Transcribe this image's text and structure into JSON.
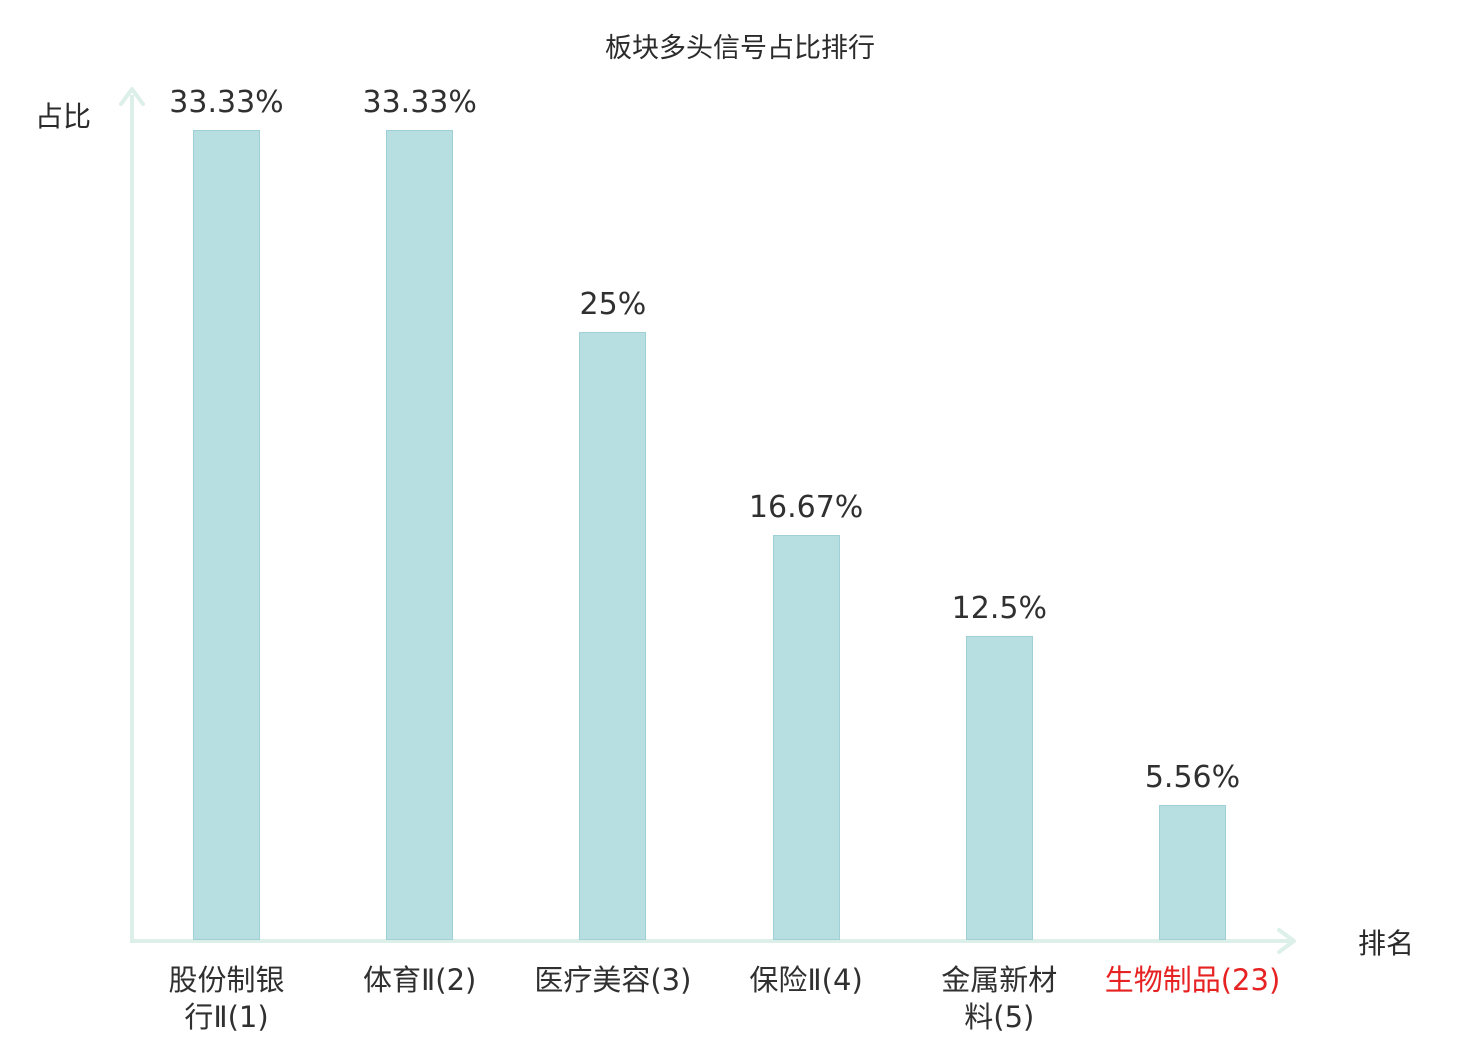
{
  "chart_data": {
    "type": "bar",
    "title": "板块多头信号占比排行",
    "xlabel": "排名",
    "ylabel": "占比",
    "categories": [
      "股份制银行Ⅱ(1)",
      "体育Ⅱ(2)",
      "医疗美容(3)",
      "保险Ⅱ(4)",
      "金属新材料(5)",
      "生物制品(23)"
    ],
    "tick_labels": [
      "股份制银\n行Ⅱ(1)",
      "体育Ⅱ(2)",
      "医疗美容(3)",
      "保险Ⅱ(4)",
      "金属新材\n料(5)",
      "生物制品(23)"
    ],
    "values": [
      33.33,
      33.33,
      25,
      16.67,
      12.5,
      5.56
    ],
    "value_labels": [
      "33.33%",
      "33.33%",
      "25%",
      "16.67%",
      "12.5%",
      "5.56%"
    ],
    "ylim": [
      0,
      34.7
    ],
    "grid": false,
    "legend": "none",
    "highlight_index": 5,
    "colors": {
      "bar_fill": "#b7dee1",
      "bar_border": "#9fd0d5",
      "axis": "#dcefe9",
      "text": "#303030",
      "highlight": "#e62222"
    }
  }
}
